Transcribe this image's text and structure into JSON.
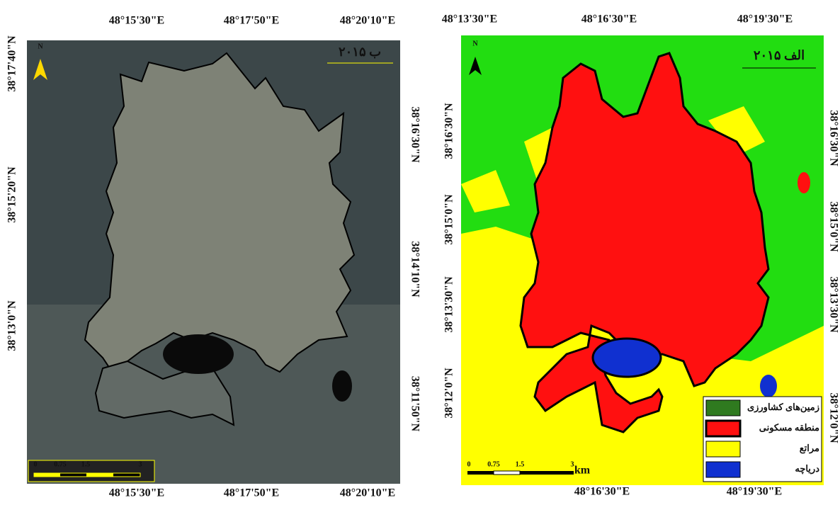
{
  "left_map": {
    "title": "ب ۲۰۱۵",
    "north": "N",
    "top_labels": [
      "48°15'30\"E",
      "48°17'50\"E",
      "48°20'10\"E"
    ],
    "bottom_labels": [
      "48°15'30\"E",
      "48°17'50\"E",
      "48°20'10\"E"
    ],
    "left_labels": [
      "38°17'40\"N",
      "38°15'20\"N",
      "38°13'0\"N"
    ],
    "right_labels": [
      "38°16'30\"N",
      "38°14'10\"N",
      "38°11'50\"N"
    ],
    "scale_labels": [
      "0",
      "0.75",
      "1.5",
      "3"
    ]
  },
  "right_map": {
    "title": "الف ۲۰۱۵",
    "north": "N",
    "top_labels": [
      "48°13'30\"E",
      "48°16'30\"E",
      "48°19'30\"E"
    ],
    "bottom_labels": [
      "48°16'30\"E",
      "48°19'30\"E"
    ],
    "left_labels": [
      "38°16'30\"N",
      "38°15'0\"N",
      "38°13'30\"N",
      "38°12'0\"N"
    ],
    "right_labels": [
      "38°16'30\"N",
      "38°15'0\"N",
      "38°13'30\"N",
      "38°12'0\"N"
    ],
    "scale_labels": [
      "0",
      "0.75",
      "1.5",
      "3",
      "km"
    ],
    "legend": [
      {
        "label": "زمین‌های کشاورزی",
        "color": "#2f7a1f"
      },
      {
        "label": "منطقه مسکونی",
        "color": "#ff1010"
      },
      {
        "label": "مراتع",
        "color": "#ffff00"
      },
      {
        "label": "دریاچه",
        "color": "#1030d0"
      }
    ]
  }
}
